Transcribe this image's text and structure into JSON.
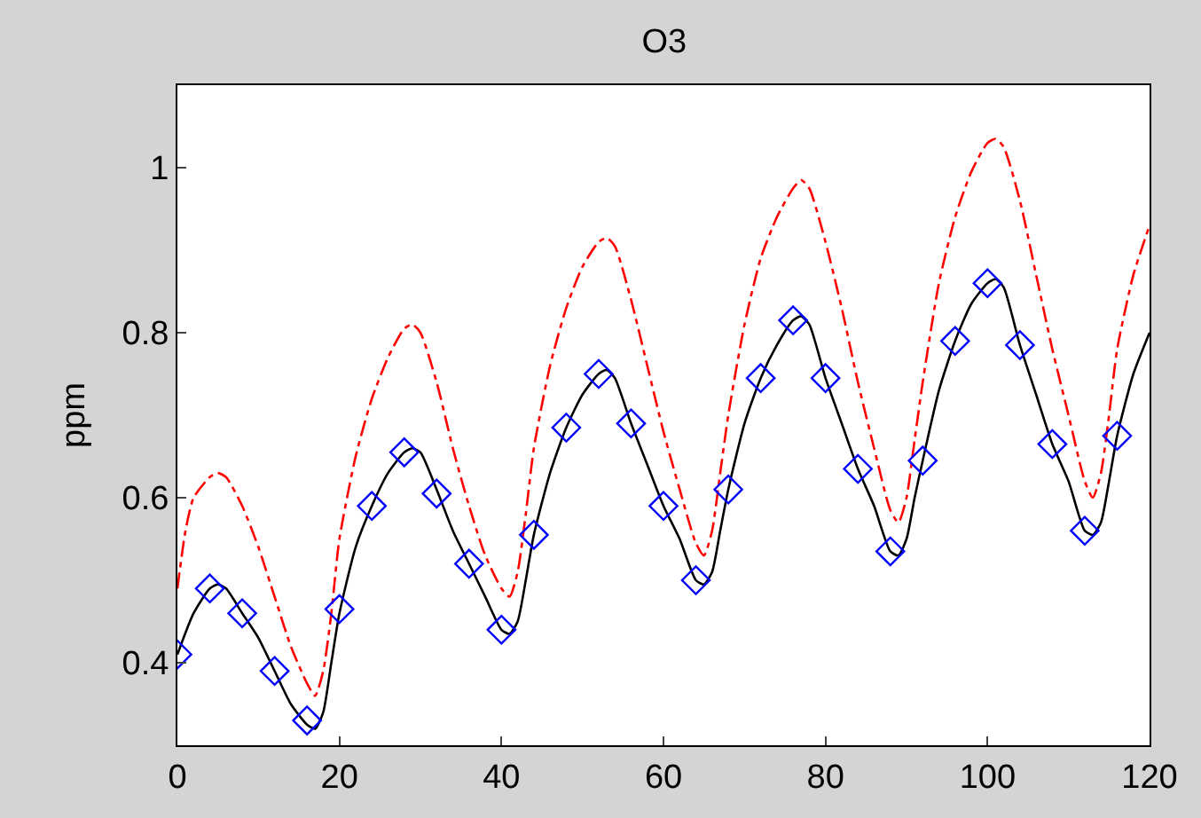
{
  "chart_data": {
    "type": "line",
    "title": "O3",
    "ylabel": "ppm",
    "xlim": [
      0,
      120
    ],
    "xticks": [
      0,
      20,
      40,
      60,
      80,
      100,
      120
    ],
    "ylim": [
      0.3,
      1.1
    ],
    "yticks": [
      0.4,
      0.6,
      0.8,
      1
    ],
    "series": [
      {
        "color": "#ff0000",
        "line_style": "dashdot",
        "marker": "none",
        "x": [
          0,
          1,
          2,
          4,
          5,
          6,
          8,
          10,
          12,
          14,
          16,
          17,
          18,
          19,
          20,
          22,
          24,
          26,
          28,
          29,
          30,
          32,
          34,
          36,
          38,
          40,
          41,
          42,
          43,
          44,
          46,
          48,
          50,
          52,
          53,
          54,
          56,
          58,
          60,
          62,
          64,
          65,
          66,
          67,
          68,
          70,
          72,
          74,
          76,
          77,
          78,
          80,
          82,
          84,
          86,
          88,
          89,
          90,
          91,
          92,
          94,
          96,
          98,
          100,
          101,
          102,
          104,
          106,
          108,
          110,
          112,
          113,
          114,
          115,
          116,
          118,
          120
        ],
        "values": [
          0.49,
          0.56,
          0.6,
          0.625,
          0.63,
          0.625,
          0.59,
          0.54,
          0.48,
          0.42,
          0.375,
          0.36,
          0.39,
          0.46,
          0.55,
          0.65,
          0.72,
          0.77,
          0.805,
          0.81,
          0.8,
          0.74,
          0.66,
          0.59,
          0.53,
          0.49,
          0.48,
          0.51,
          0.58,
          0.66,
          0.76,
          0.83,
          0.88,
          0.91,
          0.915,
          0.905,
          0.84,
          0.76,
          0.68,
          0.61,
          0.545,
          0.53,
          0.56,
          0.63,
          0.7,
          0.81,
          0.89,
          0.94,
          0.975,
          0.985,
          0.975,
          0.91,
          0.83,
          0.74,
          0.66,
          0.585,
          0.57,
          0.6,
          0.67,
          0.74,
          0.86,
          0.94,
          0.995,
          1.03,
          1.035,
          1.025,
          0.96,
          0.87,
          0.78,
          0.7,
          0.62,
          0.6,
          0.63,
          0.7,
          0.78,
          0.87,
          0.93
        ]
      },
      {
        "color": "#000000",
        "line_style": "solid",
        "marker": "none",
        "x": [
          0,
          2,
          4,
          5,
          6,
          8,
          10,
          12,
          14,
          16,
          17,
          18,
          19,
          20,
          22,
          24,
          26,
          28,
          29,
          30,
          32,
          34,
          36,
          38,
          40,
          41,
          42,
          43,
          44,
          46,
          48,
          50,
          52,
          53,
          54,
          56,
          58,
          60,
          62,
          64,
          65,
          66,
          67,
          68,
          70,
          72,
          74,
          76,
          77,
          78,
          80,
          82,
          84,
          86,
          88,
          89,
          90,
          91,
          92,
          94,
          96,
          98,
          100,
          101,
          102,
          104,
          106,
          108,
          110,
          112,
          113,
          114,
          115,
          116,
          118,
          120
        ],
        "values": [
          0.41,
          0.46,
          0.49,
          0.495,
          0.49,
          0.46,
          0.43,
          0.39,
          0.35,
          0.325,
          0.32,
          0.34,
          0.4,
          0.46,
          0.54,
          0.59,
          0.63,
          0.655,
          0.66,
          0.655,
          0.61,
          0.56,
          0.52,
          0.48,
          0.44,
          0.435,
          0.45,
          0.5,
          0.555,
          0.63,
          0.685,
          0.725,
          0.75,
          0.755,
          0.745,
          0.69,
          0.64,
          0.59,
          0.55,
          0.5,
          0.495,
          0.51,
          0.56,
          0.61,
          0.69,
          0.745,
          0.785,
          0.815,
          0.82,
          0.81,
          0.745,
          0.69,
          0.635,
          0.59,
          0.535,
          0.53,
          0.55,
          0.6,
          0.645,
          0.73,
          0.79,
          0.835,
          0.86,
          0.865,
          0.855,
          0.785,
          0.725,
          0.665,
          0.62,
          0.56,
          0.555,
          0.57,
          0.62,
          0.675,
          0.75,
          0.8
        ]
      },
      {
        "type": "scatter",
        "color": "#0000ff",
        "marker": "diamond",
        "x": [
          0,
          4,
          8,
          12,
          16,
          20,
          24,
          28,
          32,
          36,
          40,
          44,
          48,
          52,
          56,
          60,
          64,
          68,
          72,
          76,
          80,
          84,
          88,
          92,
          96,
          100,
          104,
          108,
          112,
          116
        ],
        "values": [
          0.41,
          0.49,
          0.46,
          0.39,
          0.33,
          0.465,
          0.59,
          0.655,
          0.605,
          0.52,
          0.44,
          0.555,
          0.685,
          0.75,
          0.69,
          0.59,
          0.5,
          0.61,
          0.745,
          0.815,
          0.745,
          0.635,
          0.535,
          0.645,
          0.79,
          0.86,
          0.785,
          0.665,
          0.56,
          0.675
        ]
      }
    ]
  }
}
